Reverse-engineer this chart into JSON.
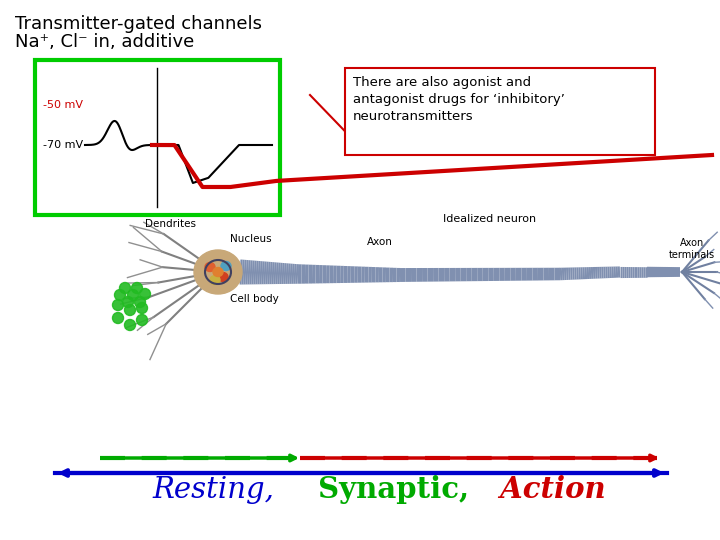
{
  "title_line1": "Transmitter-gated channels",
  "title_line2": "Na⁺, Cl⁻ in, additive",
  "annotation_text": "There are also agonist and\nantagonist drugs for ‘inhibitory’\nneurotransmitters",
  "label_minus50": "-50 mV",
  "label_minus70": "-70 mV",
  "bg_color": "#ffffff",
  "green_box_color": "#00cc00",
  "red_color": "#cc0000",
  "resting_color": "#0000cc",
  "synaptic_color": "#00aa00",
  "action_color": "#cc0000",
  "resting_label": "Resting,",
  "synaptic_label": " Synaptic,",
  "action_label": " Action"
}
